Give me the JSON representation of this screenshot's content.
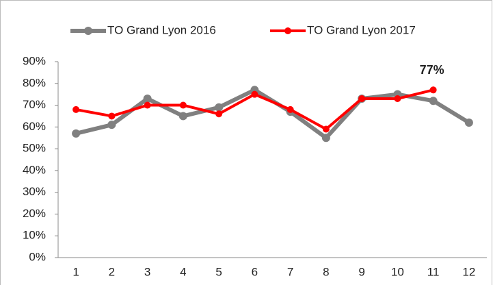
{
  "chart_data": {
    "type": "line",
    "categories": [
      "1",
      "2",
      "3",
      "4",
      "5",
      "6",
      "7",
      "8",
      "9",
      "10",
      "11",
      "12"
    ],
    "series": [
      {
        "name": "TO Grand Lyon 2016",
        "color": "#808080",
        "values": [
          57,
          61,
          73,
          65,
          69,
          77,
          67,
          55,
          73,
          75,
          72,
          62
        ]
      },
      {
        "name": "TO Grand Lyon 2017",
        "color": "#ff0000",
        "values": [
          68,
          65,
          70,
          70,
          66,
          75,
          68,
          59,
          73,
          73,
          77,
          null
        ],
        "value_labels": [
          null,
          null,
          null,
          null,
          null,
          null,
          null,
          null,
          null,
          null,
          "77%",
          null
        ]
      }
    ],
    "ylim": [
      0,
      90
    ],
    "yticks": [
      {
        "value": 0,
        "label": "0%"
      },
      {
        "value": 10,
        "label": "10%"
      },
      {
        "value": 20,
        "label": "20%"
      },
      {
        "value": 30,
        "label": "30%"
      },
      {
        "value": 40,
        "label": "40%"
      },
      {
        "value": 50,
        "label": "50%"
      },
      {
        "value": 60,
        "label": "60%"
      },
      {
        "value": 70,
        "label": "70%"
      },
      {
        "value": 80,
        "label": "80%"
      },
      {
        "value": 90,
        "label": "90%"
      }
    ],
    "legend": "top"
  }
}
